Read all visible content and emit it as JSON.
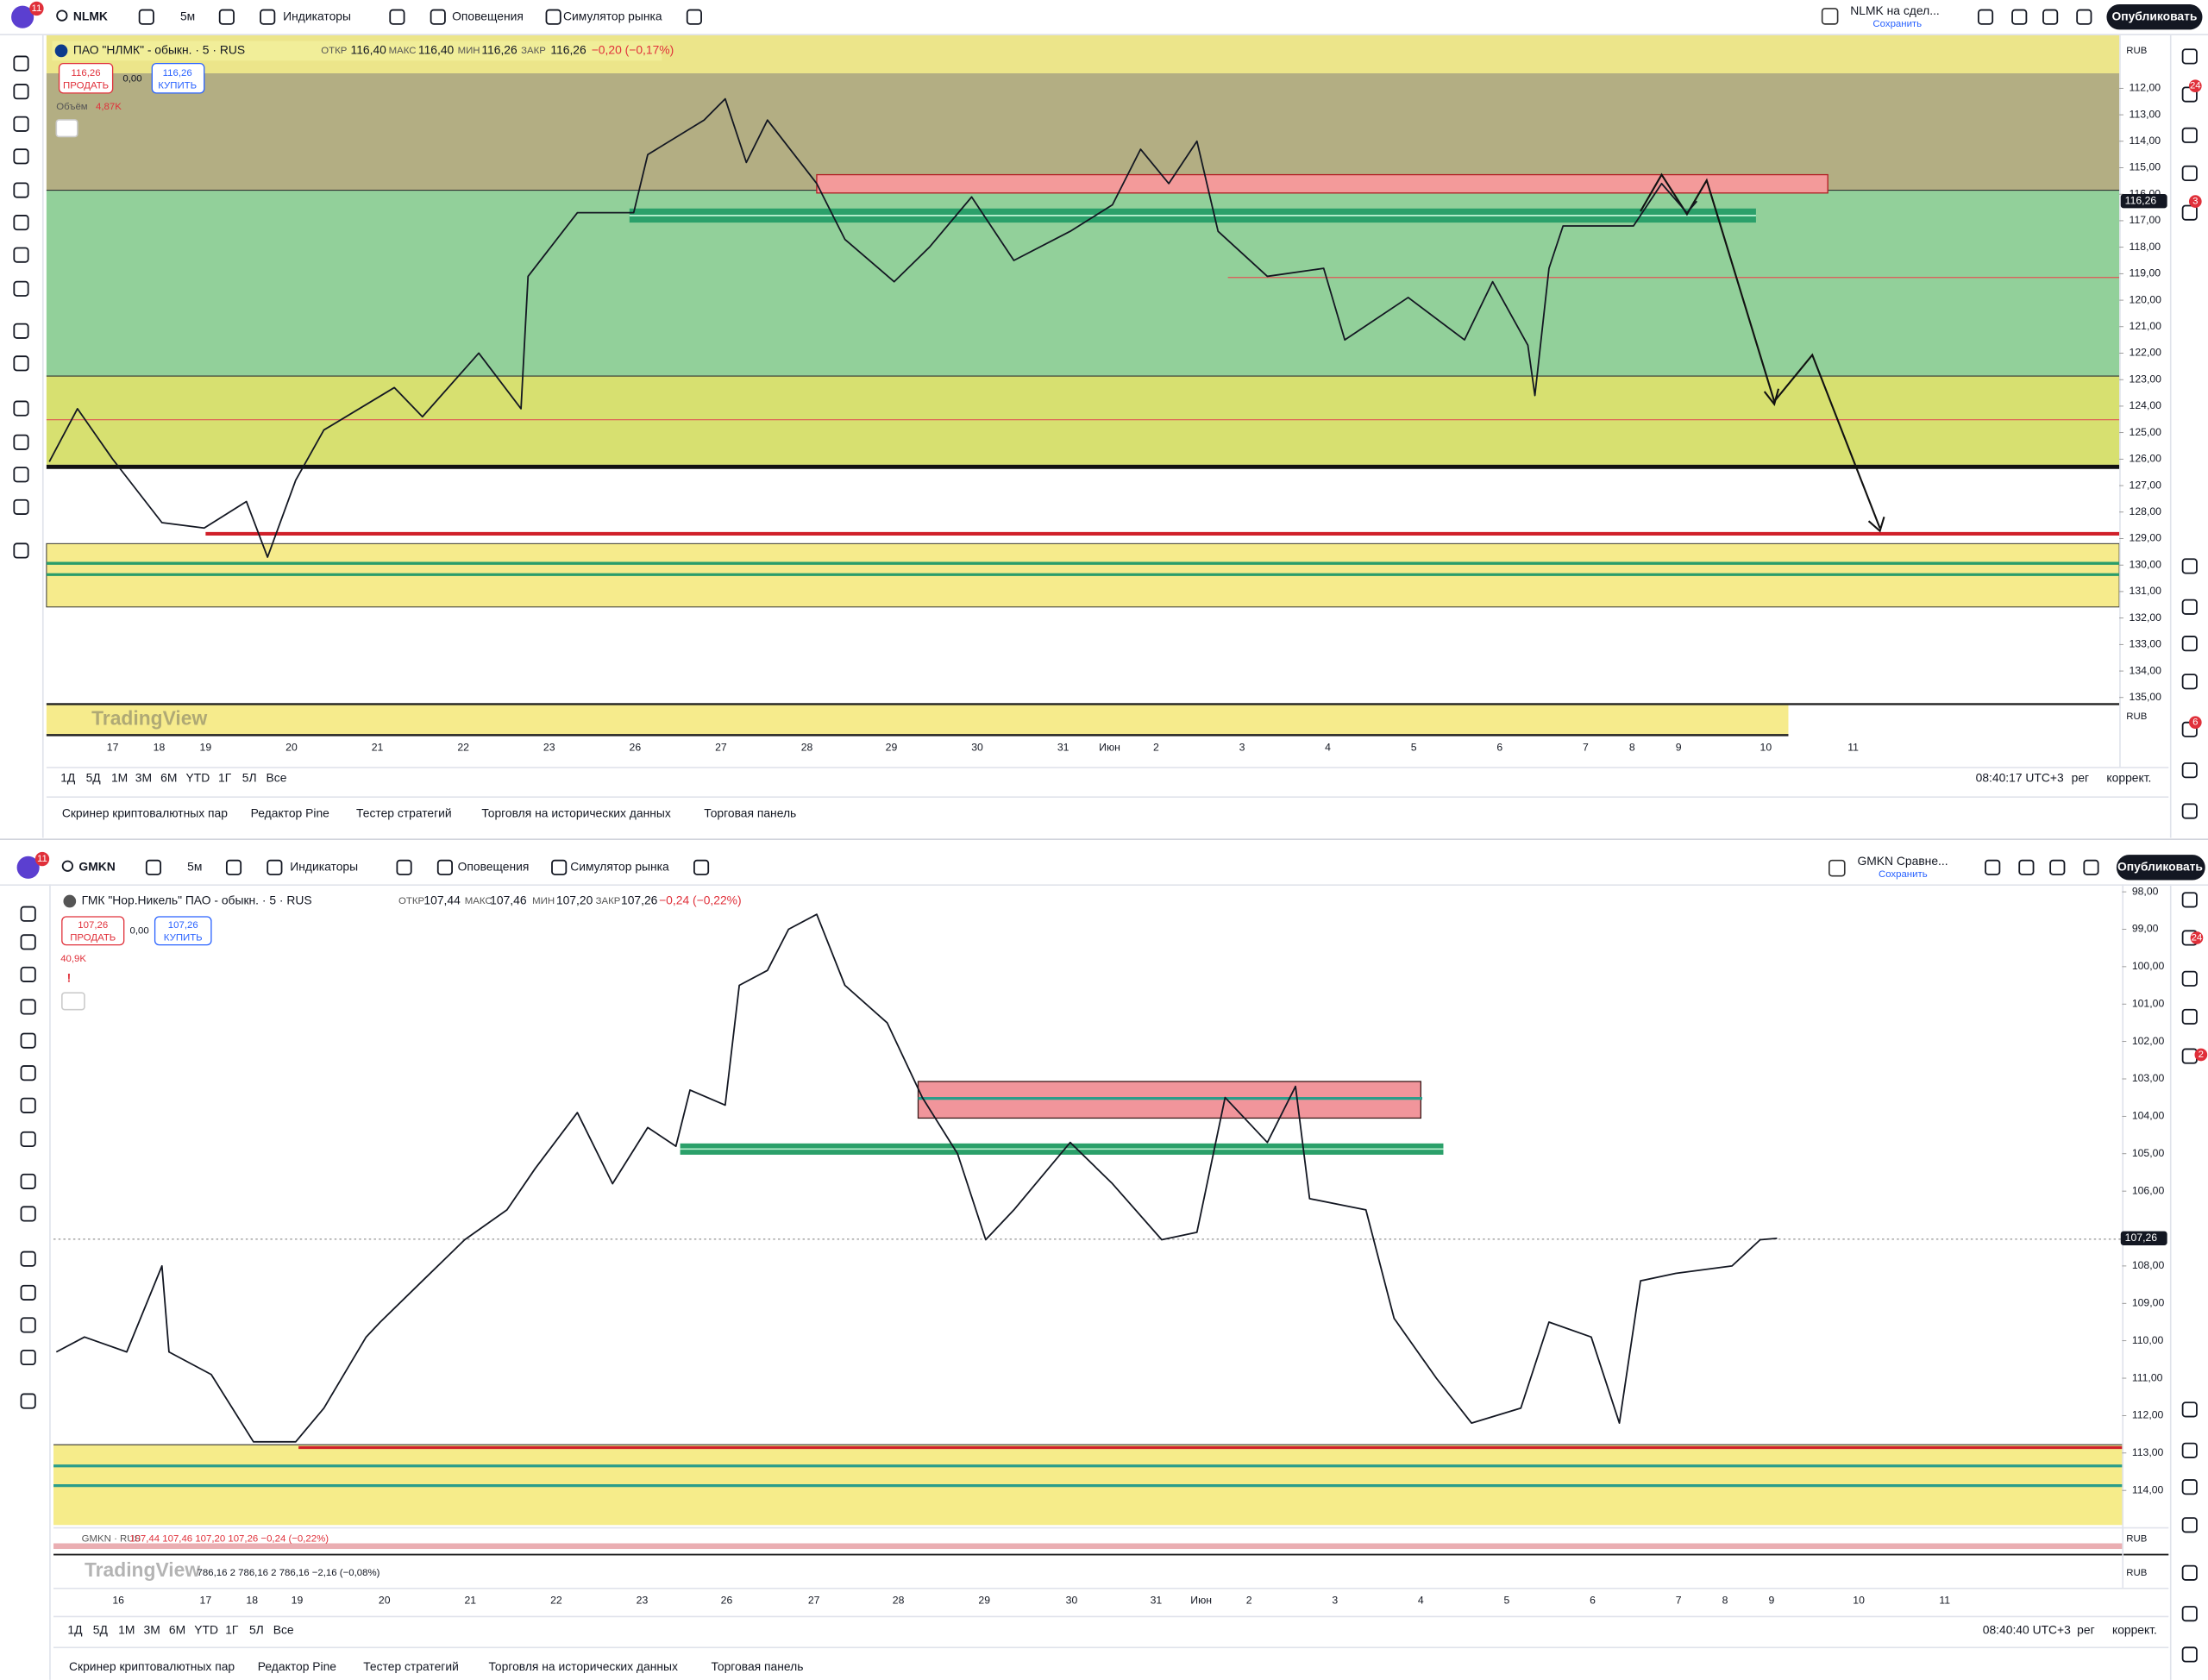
{
  "panels": [
    {
      "toolbar": {
        "badge": "11",
        "symbol": "NLMK",
        "interval": "5м",
        "indicators": "Индикаторы",
        "alerts": "Оповещения",
        "replay": "Симулятор рынка",
        "layout_name": "NLMK на сдел...",
        "save_status": "Сохранить",
        "publish": "Опубликовать"
      },
      "legend": {
        "name": "ПАО \"НЛМК\" - обыкн. · 5 · RUS",
        "open_label": "ОТКР",
        "open": "116,40",
        "high_label": "МАКС",
        "high": "116,40",
        "low_label": "МИН",
        "low": "116,26",
        "close_label": "ЗАКР",
        "close": "116,26",
        "change": "−0,20 (−0,17%)"
      },
      "trade": {
        "sell_price": "116,26",
        "sell": "ПРОДАТЬ",
        "spread": "0,00",
        "buy_price": "116,26",
        "buy": "КУПИТЬ"
      },
      "volume_label": "Объём",
      "volume": "4,87K",
      "currency": "RUB",
      "currency2": "RUB",
      "chart_data": {
        "type": "line",
        "inverted": true,
        "color": "#131722",
        "values": [
          126.1,
          124.1,
          126,
          128.4,
          128.6,
          127.6,
          129.7,
          126.8,
          124.9,
          123.3,
          124.4,
          122,
          124.1,
          119.1,
          116.7,
          116.7,
          114.5,
          113.2,
          112.4,
          114.8,
          113.2,
          115.6,
          117.7,
          119.3,
          118,
          116.1,
          118.5,
          117.4,
          116.4,
          114.3,
          115.6,
          114,
          117.4,
          119.1,
          118.8,
          121.5,
          119.9,
          121.5,
          119.3,
          121.7,
          123.6,
          118.8,
          117.2,
          117.2,
          115.6,
          116.7,
          116.26
        ],
        "ylim": [
          110,
          135.25
        ],
        "yticks": [
          {
            "value": 112,
            "label": "112,00"
          },
          {
            "value": 113,
            "label": "113,00"
          },
          {
            "value": 114,
            "label": "114,00"
          },
          {
            "value": 115,
            "label": "115,00"
          },
          {
            "value": 116,
            "label": "116,00"
          },
          {
            "value": 117,
            "label": "117,00"
          },
          {
            "value": 118,
            "label": "118,00"
          },
          {
            "value": 119,
            "label": "119,00"
          },
          {
            "value": 120,
            "label": "120,00"
          },
          {
            "value": 121,
            "label": "121,00"
          },
          {
            "value": 122,
            "label": "122,00"
          },
          {
            "value": 123,
            "label": "123,00"
          },
          {
            "value": 124,
            "label": "124,00"
          },
          {
            "value": 125,
            "label": "125,00"
          },
          {
            "value": 126,
            "label": "126,00"
          },
          {
            "value": 127,
            "label": "127,00"
          },
          {
            "value": 128,
            "label": "128,00"
          },
          {
            "value": 129,
            "label": "129,00"
          },
          {
            "value": 130,
            "label": "130,00"
          },
          {
            "value": 131,
            "label": "131,00"
          },
          {
            "value": 132,
            "label": "132,00"
          },
          {
            "value": 133,
            "label": "133,00"
          },
          {
            "value": 134,
            "label": "134,00"
          },
          {
            "value": 135,
            "label": "135,00"
          }
        ],
        "last_price": {
          "value": 116.26,
          "label": "116,26"
        },
        "x_labels": [
          "17",
          "18",
          "19",
          "20",
          "21",
          "22",
          "23",
          "26",
          "27",
          "28",
          "29",
          "30",
          "31",
          "Июн",
          "2",
          "3",
          "4",
          "5",
          "6",
          "7",
          "8",
          "9",
          "10",
          "11"
        ]
      },
      "timeframes": [
        "1Д",
        "5Д",
        "1М",
        "3М",
        "6М",
        "YTD",
        "1Г",
        "5Л",
        "Все"
      ],
      "clock": "08:40:17 UTC+3",
      "session": "рег",
      "adjust": "коррект.",
      "tabs": [
        "Скринер криптовалютных пар",
        "Редактор Pine",
        "Тестер стратегий",
        "Торговля на исторических данных",
        "Торговая панель"
      ],
      "watermark": "TradingView",
      "right_badges": [
        "24",
        "3",
        "6"
      ]
    },
    {
      "toolbar": {
        "badge": "11",
        "symbol": "GMKN",
        "interval": "5м",
        "indicators": "Индикаторы",
        "alerts": "Оповещения",
        "replay": "Симулятор рынка",
        "layout_name": "GMKN Сравне...",
        "save_status": "Сохранить",
        "publish": "Опубликовать"
      },
      "legend": {
        "name": "ГМК \"Нор.Никель\" ПАО - обыкн. · 5 · RUS",
        "open_label": "ОТКР",
        "open": "107,44",
        "high_label": "МАКС",
        "high": "107,46",
        "low_label": "МИН",
        "low": "107,20",
        "close_label": "ЗАКР",
        "close": "107,26",
        "change": "−0,24 (−0,22%)"
      },
      "trade": {
        "sell_price": "107,26",
        "sell": "ПРОДАТЬ",
        "spread": "0,00",
        "buy_price": "107,26",
        "buy": "КУПИТЬ"
      },
      "volume": "40,9K",
      "warning": "!",
      "sub_legend": "GMKN · RUS",
      "sub_values": "107,44  107,46  107,20  107,26  −0,24 (−0,22%)",
      "index_values": "786,16  2 786,16  2 786,16  −2,16 (−0,08%)",
      "currency": "RUB",
      "currency2": "RUB",
      "chart_data": {
        "type": "line",
        "inverted": true,
        "color": "#131722",
        "values": [
          110.3,
          109.9,
          110.3,
          108,
          110.3,
          110.9,
          112.7,
          112.7,
          111.8,
          109.9,
          109.5,
          108.4,
          107.3,
          106.5,
          105.4,
          103.9,
          105.8,
          104.3,
          104.8,
          103.3,
          103.7,
          100.5,
          100.1,
          99,
          98.6,
          100.5,
          101.5,
          103.5,
          105,
          107.3,
          106.5,
          104.7,
          105.8,
          107.3,
          107.1,
          103.5,
          104.7,
          103.2,
          106.2,
          106.5,
          109.4,
          111,
          112.2,
          111.8,
          109.5,
          109.9,
          112.2,
          108.4,
          108.2,
          108,
          107.3,
          107.26
        ],
        "ylim": [
          97.8,
          115
        ],
        "yticks": [
          {
            "value": 98,
            "label": "98,00"
          },
          {
            "value": 99,
            "label": "99,00"
          },
          {
            "value": 100,
            "label": "100,00"
          },
          {
            "value": 101,
            "label": "101,00"
          },
          {
            "value": 102,
            "label": "102,00"
          },
          {
            "value": 103,
            "label": "103,00"
          },
          {
            "value": 104,
            "label": "104,00"
          },
          {
            "value": 105,
            "label": "105,00"
          },
          {
            "value": 106,
            "label": "106,00"
          },
          {
            "value": 108,
            "label": "108,00"
          },
          {
            "value": 109,
            "label": "109,00"
          },
          {
            "value": 110,
            "label": "110,00"
          },
          {
            "value": 111,
            "label": "111,00"
          },
          {
            "value": 112,
            "label": "112,00"
          },
          {
            "value": 113,
            "label": "113,00"
          },
          {
            "value": 114,
            "label": "114,00"
          }
        ],
        "last_price": {
          "value": 107.26,
          "label": "107,26"
        },
        "x_labels": [
          "16",
          "17",
          "18",
          "19",
          "20",
          "21",
          "22",
          "23",
          "26",
          "27",
          "28",
          "29",
          "30",
          "31",
          "Июн",
          "2",
          "3",
          "4",
          "5",
          "6",
          "7",
          "8",
          "9",
          "10",
          "11"
        ]
      },
      "timeframes": [
        "1Д",
        "5Д",
        "1М",
        "3М",
        "6М",
        "YTD",
        "1Г",
        "5Л",
        "Все"
      ],
      "clock": "08:40:40 UTC+3",
      "session": "рег",
      "adjust": "коррект.",
      "tabs": [
        "Скринер криптовалютных пар",
        "Редактор Pine",
        "Тестер стратегий",
        "Торговля на исторических данных",
        "Торговая панель"
      ],
      "watermark": "TradingView",
      "right_badges": [
        "24",
        "2"
      ]
    }
  ]
}
